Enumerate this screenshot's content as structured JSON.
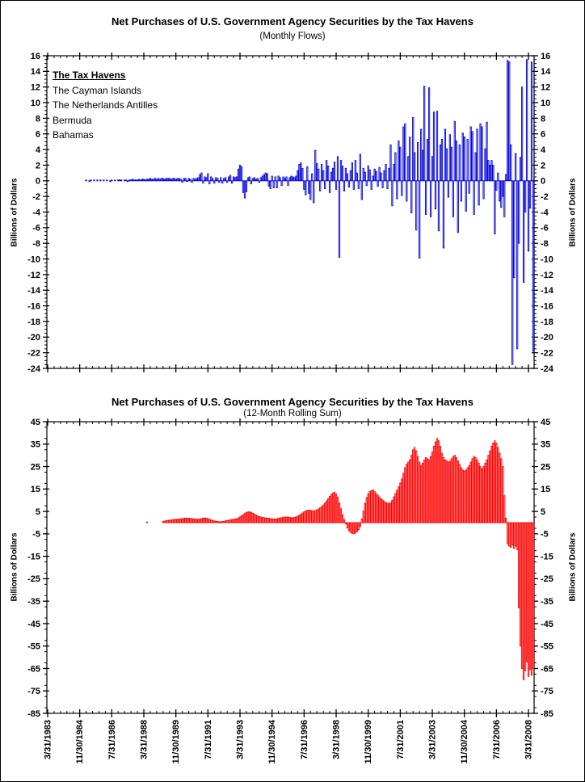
{
  "page": {
    "background": "#FFFFFF",
    "frame_color": "#000000"
  },
  "chart_data": [
    {
      "type": "bar",
      "name": "monthly-flows",
      "title": "Net Purchases of U.S. Government Agency Securities by the Tax Havens",
      "subtitle": "(Monthly Flows)",
      "ylabel_left": "Billions of Dollars",
      "ylabel_right": "Billions of Dollars",
      "bar_color": "#0000DD",
      "axis_color": "#000000",
      "ylim": [
        -24,
        16
      ],
      "y_major_step": 2,
      "y_minor_step": 0.5,
      "y_tick_labels": [
        16,
        14,
        12,
        10,
        8,
        6,
        4,
        2,
        0,
        -2,
        -4,
        -6,
        -8,
        -10,
        -12,
        -14,
        -16,
        -18,
        -20,
        -22,
        -24
      ],
      "x_start": "3/31/1983",
      "x_major_step_months": 20,
      "x_minor_step_months": 4,
      "show_x_labels": false,
      "legend": {
        "title": "The Tax Havens",
        "items": [
          "The Cayman Islands",
          "The Netherlands Antilles",
          "Bermuda",
          "Bahamas"
        ]
      },
      "values": [
        0,
        0,
        0,
        0,
        0,
        0,
        0,
        0,
        0,
        0,
        0,
        0,
        0,
        0,
        0,
        0,
        0,
        0,
        0,
        0,
        0,
        0,
        0,
        0,
        0.1,
        0,
        -0.1,
        0.1,
        0,
        0.1,
        0,
        0.1,
        0,
        0.1,
        0,
        0.1,
        0,
        0.1,
        0,
        -0.1,
        0.1,
        0,
        0.1,
        0,
        0.1,
        0.1,
        0.1,
        0,
        0.1,
        0.1,
        -0.1,
        0.1,
        0.1,
        0.2,
        0.1,
        0.1,
        0.1,
        0.2,
        0.1,
        0.2,
        0.2,
        0.1,
        0.2,
        0.2,
        0.3,
        0.2,
        0.2,
        0.3,
        0.2,
        0.3,
        0.2,
        0.3,
        0.3,
        0.2,
        0.3,
        0.3,
        0.3,
        0.2,
        0.3,
        0.3,
        0.2,
        0.3,
        0.3,
        0.2,
        -0.2,
        0.3,
        0.3,
        -0.1,
        0.3,
        0.2,
        -0.2,
        0.3,
        0.2,
        0.3,
        0.4,
        0.8,
        1.0,
        -0.3,
        0.5,
        0.4,
        0.9,
        -0.4,
        0.5,
        0.3,
        -0.3,
        0.4,
        0.3,
        -0.2,
        0.4,
        -0.3,
        0.3,
        0.4,
        -0.2,
        0.5,
        0.7,
        -0.3,
        0.5,
        0.4,
        0.5,
        1.5,
        2.0,
        1.8,
        -1.5,
        -2.2,
        -1.4,
        0.4,
        0.5,
        -0.4,
        0.3,
        0.4,
        0.2,
        0.3,
        -0.2,
        0.4,
        0.6,
        0.8,
        1.0,
        0.9,
        -0.7,
        -1.0,
        0.6,
        -0.9,
        0.5,
        -0.9,
        0.6,
        0.4,
        -0.6,
        0.5,
        0.3,
        0.5,
        -0.6,
        0.4,
        0.6,
        0.5,
        0.4,
        0.6,
        1.3,
        2.1,
        2.3,
        1.6,
        -1.1,
        -1.8,
        1.8,
        -1.6,
        -2.4,
        0.9,
        -2.8,
        3.9,
        2.2,
        1.5,
        -1.3,
        2.1,
        1.3,
        -1.0,
        2.6,
        1.9,
        -1.5,
        1.1,
        1.6,
        2.4,
        -1.1,
        3.1,
        -9.8,
        2.6,
        1.9,
        -1.3,
        1.6,
        0.9,
        -0.8,
        1.3,
        2.3,
        -1.1,
        2.6,
        1.0,
        -1.0,
        3.4,
        -2.4,
        1.6,
        1.1,
        -0.6,
        1.9,
        1.4,
        -1.1,
        0.6,
        1.5,
        1.2,
        -0.7,
        1.7,
        1.0,
        -0.9,
        1.3,
        2.1,
        -1.0,
        1.6,
        4.6,
        -3.2,
        2.1,
        3.6,
        -2.3,
        5.1,
        4.3,
        -1.9,
        6.9,
        7.3,
        -2.6,
        3.1,
        5.6,
        -4.1,
        8.1,
        3.6,
        -6.3,
        4.9,
        -9.9,
        6.6,
        3.9,
        12.1,
        -4.3,
        5.3,
        11.9,
        -4.6,
        3.1,
        8.8,
        -3.6,
        8.9,
        -6.4,
        4.6,
        5.3,
        -8.6,
        6.6,
        4.1,
        -2.1,
        5.9,
        4.3,
        -4.6,
        7.6,
        5.1,
        -6.6,
        4.6,
        -2.6,
        6.1,
        5.6,
        -3.9,
        5.3,
        -1.6,
        6.9,
        6.3,
        -4.3,
        3.6,
        6.6,
        -3.1,
        7.3,
        6.9,
        -2.3,
        4.1,
        7.5,
        2.6,
        2.0,
        2.6,
        2.0,
        -6.8,
        -1.2,
        1.0,
        -2.6,
        -3.4,
        -2.0,
        -4.6,
        0.8,
        15.4,
        15.2,
        4.6,
        -23.5,
        -12.4,
        3.5,
        -21.5,
        -8.0,
        3.0,
        12.0,
        -13.0,
        -4.0,
        15.5,
        -9.0,
        -3.5,
        15.2,
        -21.8
      ]
    },
    {
      "type": "bar",
      "name": "rolling-sum",
      "title": "Net Purchases of U.S. Government Agency Securities by the Tax Havens",
      "subtitle": "(12-Month Rolling Sum)",
      "ylabel_left": "Billions of Dollars",
      "ylabel_right": "Billions of Dollars",
      "bar_color": "#FF0000",
      "axis_color": "#000000",
      "ylim": [
        -85,
        45
      ],
      "y_major_step": 10,
      "y_minor_step": 2.5,
      "y_tick_labels": [
        45,
        35,
        25,
        15,
        5,
        -5,
        -15,
        -25,
        -35,
        -45,
        -55,
        -65,
        -75,
        -85
      ],
      "x_major_step_months": 20,
      "x_minor_step_months": 4,
      "show_x_labels": true,
      "x_tick_labels": [
        "3/31/1983",
        "11/30/1984",
        "7/31/1986",
        "3/31/1988",
        "11/30/1989",
        "7/31/1991",
        "3/31/1993",
        "11/30/1994",
        "7/31/1996",
        "3/31/1998",
        "11/30/1999",
        "7/31/2001",
        "3/31/2003",
        "11/30/2004",
        "7/31/2006",
        "3/31/2008"
      ],
      "values": [
        0,
        0,
        0,
        0,
        0,
        0,
        0,
        0,
        0,
        0,
        0,
        0,
        0,
        0,
        0,
        0,
        0,
        0,
        0,
        0,
        0,
        0,
        0,
        0,
        0,
        0,
        0,
        0,
        0,
        0,
        0,
        0,
        0,
        0,
        0,
        0,
        0,
        0,
        0,
        0,
        0,
        0,
        0,
        0,
        0,
        0,
        0,
        0,
        0,
        0,
        0,
        0,
        0,
        0,
        0,
        0,
        0,
        0,
        0,
        0,
        0,
        0,
        0.3,
        0,
        0,
        0,
        0,
        0,
        0,
        0,
        0,
        0,
        0.5,
        0.7,
        0.9,
        1.0,
        1.1,
        1.2,
        1.3,
        1.4,
        1.5,
        1.5,
        1.6,
        1.7,
        1.8,
        1.9,
        2.0,
        2.0,
        1.9,
        1.9,
        1.8,
        1.7,
        1.6,
        1.5,
        1.5,
        1.6,
        1.8,
        2.0,
        2.1,
        2.0,
        1.8,
        1.5,
        1.2,
        1.0,
        0.8,
        0.6,
        0.5,
        0.4,
        0.4,
        0.5,
        0.6,
        0.8,
        0.9,
        1.1,
        1.2,
        1.4,
        1.5,
        1.6,
        1.8,
        2.1,
        2.6,
        3.1,
        3.6,
        4.1,
        4.5,
        4.8,
        4.8,
        4.6,
        4.2,
        3.8,
        3.4,
        3.0,
        2.7,
        2.5,
        2.3,
        2.2,
        2.1,
        2.0,
        1.9,
        1.8,
        1.7,
        1.6,
        1.6,
        1.7,
        1.9,
        2.1,
        2.2,
        2.4,
        2.5,
        2.5,
        2.4,
        2.3,
        2.2,
        2.2,
        2.3,
        2.6,
        2.9,
        3.3,
        3.8,
        4.3,
        4.8,
        5.2,
        5.5,
        5.6,
        5.5,
        5.3,
        5.2,
        5.4,
        5.7,
        6.1,
        6.6,
        7.2,
        7.9,
        8.7,
        9.7,
        10.7,
        11.7,
        12.5,
        13.2,
        13.6,
        12.8,
        11.4,
        8.8,
        6.2,
        3.6,
        1.4,
        -0.6,
        -2.4,
        -3.6,
        -4.4,
        -4.8,
        -5.0,
        -4.6,
        -4.0,
        -3.2,
        -1.8,
        1.6,
        5.2,
        8.6,
        11.2,
        12.9,
        13.9,
        14.3,
        14.6,
        13.8,
        13.0,
        12.2,
        11.4,
        10.7,
        10.1,
        9.5,
        9.0,
        8.7,
        8.5,
        9.0,
        10.0,
        11.5,
        13.0,
        14.5,
        16.0,
        17.6,
        19.5,
        22.0,
        24.5,
        26.0,
        27.0,
        28.0,
        30.0,
        32.5,
        33.5,
        32.0,
        29.5,
        27.0,
        25.5,
        26.5,
        28.0,
        29.0,
        28.5,
        28.0,
        29.5,
        31.5,
        34.0,
        36.0,
        37.5,
        36.5,
        34.0,
        31.0,
        29.0,
        28.0,
        27.5,
        27.0,
        27.5,
        28.5,
        29.5,
        30.0,
        29.0,
        27.5,
        26.0,
        24.5,
        23.5,
        23.0,
        23.5,
        24.5,
        25.5,
        27.0,
        28.5,
        29.5,
        29.0,
        28.0,
        26.5,
        25.0,
        24.0,
        25.0,
        26.5,
        28.0,
        30.0,
        32.0,
        34.0,
        35.5,
        36.5,
        35.5,
        33.5,
        31.0,
        28.5,
        25.0,
        12.0,
        2.0,
        -9.5,
        -10.5,
        -11.0,
        -10.0,
        -11.5,
        -10.5,
        -12.0,
        -38.0,
        -55.0,
        -65.0,
        -70.0,
        -66.0,
        -62.0,
        -68.5,
        -65.5,
        -68.0,
        -65.0
      ]
    }
  ]
}
